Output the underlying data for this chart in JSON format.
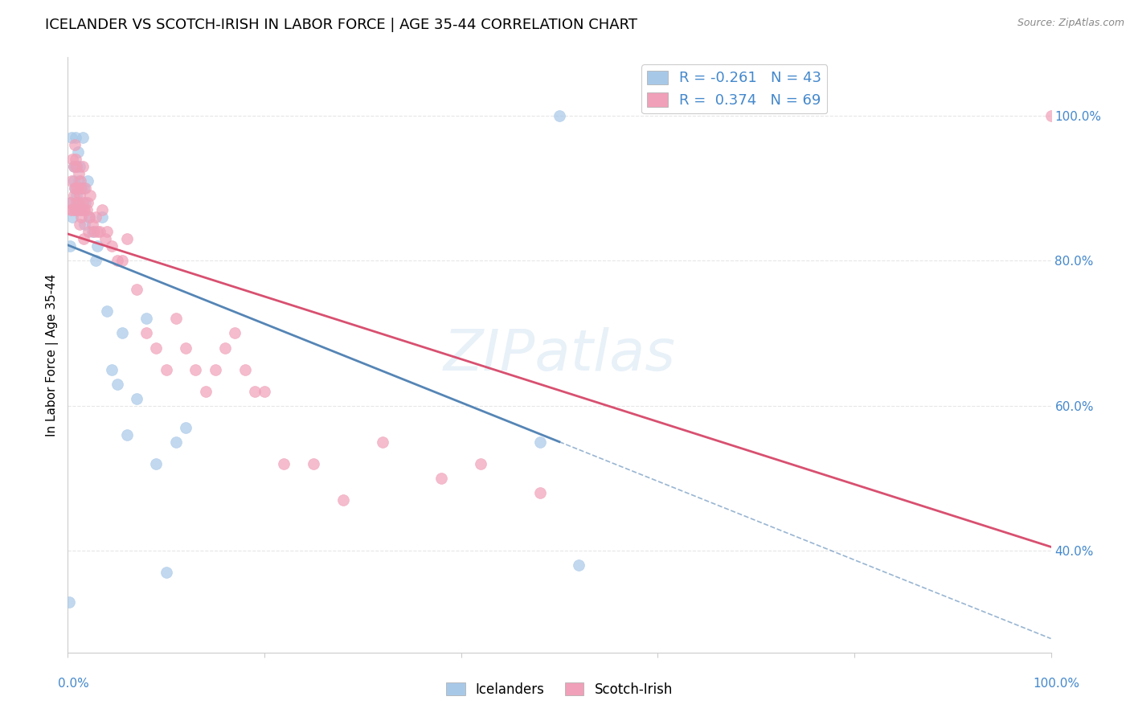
{
  "title": "ICELANDER VS SCOTCH-IRISH IN LABOR FORCE | AGE 35-44 CORRELATION CHART",
  "source": "Source: ZipAtlas.com",
  "ylabel": "In Labor Force | Age 35-44",
  "ylabel_right_vals": [
    0.4,
    0.6,
    0.8,
    1.0
  ],
  "xlim": [
    0.0,
    1.0
  ],
  "ylim": [
    0.26,
    1.08
  ],
  "legend_icelander_r": "-0.261",
  "legend_icelander_n": "43",
  "legend_scotch_r": "0.374",
  "legend_scotch_n": "69",
  "icelander_color": "#a8c8e8",
  "scotch_color": "#f0a0b8",
  "icelander_line_color": "#5585b5",
  "scotch_line_color": "#d85070",
  "grid_color": "#e0e0e0",
  "background_color": "#ffffff",
  "icelander_x": [
    0.001,
    0.002,
    0.003,
    0.004,
    0.005,
    0.006,
    0.006,
    0.007,
    0.007,
    0.008,
    0.008,
    0.009,
    0.009,
    0.01,
    0.01,
    0.011,
    0.012,
    0.013,
    0.014,
    0.015,
    0.016,
    0.017,
    0.018,
    0.02,
    0.022,
    0.025,
    0.028,
    0.03,
    0.035,
    0.04,
    0.045,
    0.05,
    0.055,
    0.06,
    0.07,
    0.08,
    0.09,
    0.1,
    0.11,
    0.12,
    0.48,
    0.5,
    0.52
  ],
  "icelander_y": [
    0.33,
    0.82,
    0.88,
    0.97,
    0.86,
    0.91,
    0.93,
    0.9,
    0.87,
    0.93,
    0.97,
    0.89,
    0.93,
    0.88,
    0.95,
    0.91,
    0.93,
    0.9,
    0.87,
    0.97,
    0.9,
    0.85,
    0.88,
    0.91,
    0.86,
    0.84,
    0.8,
    0.82,
    0.86,
    0.73,
    0.65,
    0.63,
    0.7,
    0.56,
    0.61,
    0.72,
    0.52,
    0.37,
    0.55,
    0.57,
    0.55,
    1.0,
    0.38
  ],
  "scotch_x": [
    0.002,
    0.003,
    0.004,
    0.005,
    0.005,
    0.006,
    0.006,
    0.007,
    0.007,
    0.008,
    0.008,
    0.009,
    0.009,
    0.009,
    0.01,
    0.01,
    0.011,
    0.011,
    0.012,
    0.012,
    0.013,
    0.013,
    0.014,
    0.014,
    0.015,
    0.015,
    0.016,
    0.016,
    0.017,
    0.018,
    0.019,
    0.02,
    0.021,
    0.022,
    0.023,
    0.025,
    0.027,
    0.028,
    0.03,
    0.032,
    0.035,
    0.038,
    0.04,
    0.045,
    0.05,
    0.055,
    0.06,
    0.07,
    0.08,
    0.09,
    0.1,
    0.11,
    0.12,
    0.13,
    0.14,
    0.15,
    0.16,
    0.17,
    0.18,
    0.19,
    0.2,
    0.22,
    0.25,
    0.28,
    0.32,
    0.38,
    0.42,
    0.48,
    1.0
  ],
  "scotch_y": [
    0.88,
    0.87,
    0.91,
    0.94,
    0.87,
    0.93,
    0.89,
    0.96,
    0.9,
    0.94,
    0.87,
    0.9,
    0.93,
    0.88,
    0.9,
    0.87,
    0.92,
    0.88,
    0.89,
    0.85,
    0.91,
    0.87,
    0.9,
    0.86,
    0.93,
    0.88,
    0.87,
    0.83,
    0.87,
    0.9,
    0.87,
    0.88,
    0.84,
    0.86,
    0.89,
    0.85,
    0.84,
    0.86,
    0.84,
    0.84,
    0.87,
    0.83,
    0.84,
    0.82,
    0.8,
    0.8,
    0.83,
    0.76,
    0.7,
    0.68,
    0.65,
    0.72,
    0.68,
    0.65,
    0.62,
    0.65,
    0.68,
    0.7,
    0.65,
    0.62,
    0.62,
    0.52,
    0.52,
    0.47,
    0.55,
    0.5,
    0.52,
    0.48,
    1.0
  ]
}
